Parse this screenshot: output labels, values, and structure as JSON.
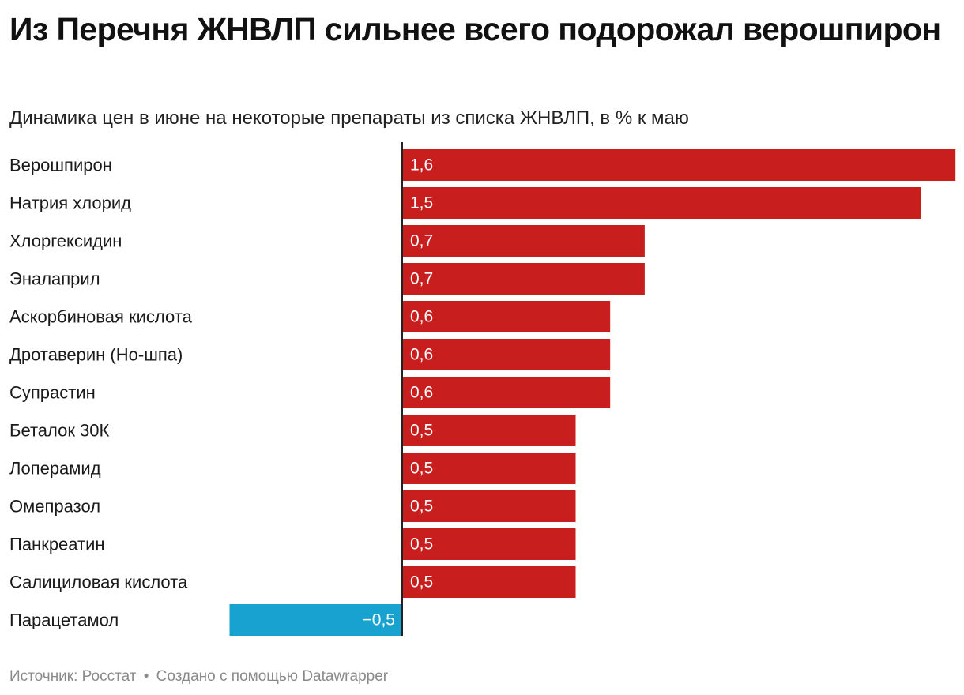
{
  "title": "Из Перечня ЖНВЛП сильнее всего подорожал верошпирон",
  "subtitle": "Динамика цен в июне на некоторые препараты из списка ЖНВЛП, в % к маю",
  "footer": {
    "source": "Источник: Росстат",
    "separator": "•",
    "credit": "Создано с помощью Datawrapper"
  },
  "colors": {
    "positive": "#c81e1e",
    "negative": "#18a2d0",
    "axis": "#222222",
    "label_text": "#1a1a1a",
    "value_text": "#ffffff"
  },
  "chart_data": {
    "type": "bar",
    "orientation": "horizontal",
    "title": "Из Перечня ЖНВЛП сильнее всего подорожал верошпирон",
    "subtitle": "Динамика цен в июне на некоторые препараты из списка ЖНВЛП, в % к маю",
    "xlabel": "",
    "ylabel": "",
    "xlim": [
      -0.5,
      1.6
    ],
    "grid": false,
    "categories": [
      "Верошпирон",
      "Натрия хлорид",
      "Хлоргексидин",
      "Эналаприл",
      "Аскорбиновая кислота",
      "Дротаверин (Но-шпа)",
      "Супрастин",
      "Беталок 30К",
      "Лоперамид",
      "Омепразол",
      "Панкреатин",
      "Салициловая кислота",
      "Парацетамол"
    ],
    "values": [
      1.6,
      1.5,
      0.7,
      0.7,
      0.6,
      0.6,
      0.6,
      0.5,
      0.5,
      0.5,
      0.5,
      0.5,
      -0.5
    ],
    "value_labels": [
      "1,6",
      "1,5",
      "0,7",
      "0,7",
      "0,6",
      "0,6",
      "0,6",
      "0,5",
      "0,5",
      "0,5",
      "0,5",
      "0,5",
      "−0,5"
    ]
  }
}
